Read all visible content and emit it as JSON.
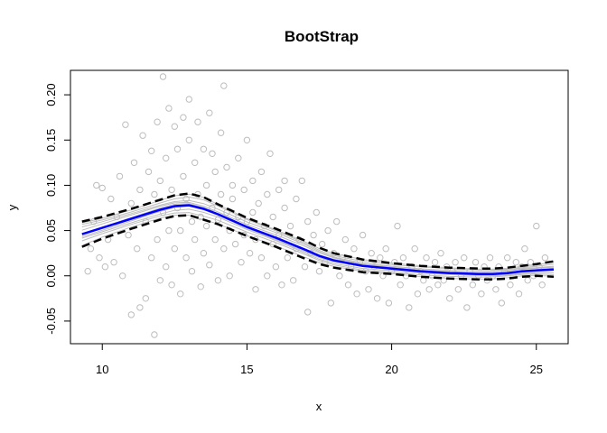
{
  "chart_data": {
    "type": "scatter",
    "title": "BootStrap",
    "xlabel": "x",
    "ylabel": "y",
    "xlim": [
      8.9,
      26.1
    ],
    "ylim": [
      -0.075,
      0.227
    ],
    "xticks": [
      10,
      15,
      20,
      25
    ],
    "xtick_labels": [
      "10",
      "15",
      "20",
      "25"
    ],
    "yticks": [
      -0.05,
      0.0,
      0.05,
      0.1,
      0.15,
      0.2
    ],
    "ytick_labels": [
      "-0.05",
      "0.00",
      "0.05",
      "0.10",
      "0.15",
      "0.20"
    ],
    "grid": false,
    "colors": {
      "points": "#bdbdbd",
      "bootstrap_curves": "#bdbdbd",
      "fit": "#0000ff",
      "band": "#000000"
    },
    "scatter_points": [
      [
        9.5,
        0.005
      ],
      [
        9.6,
        0.03
      ],
      [
        9.7,
        0.06
      ],
      [
        9.8,
        0.1
      ],
      [
        9.9,
        0.02
      ],
      [
        10.0,
        0.097
      ],
      [
        10.1,
        0.01
      ],
      [
        10.2,
        0.04
      ],
      [
        10.3,
        0.085
      ],
      [
        10.4,
        0.015
      ],
      [
        10.5,
        0.065
      ],
      [
        10.6,
        0.11
      ],
      [
        10.7,
        0.0
      ],
      [
        10.8,
        0.167
      ],
      [
        10.9,
        0.045
      ],
      [
        11.0,
        -0.043
      ],
      [
        11.0,
        0.08
      ],
      [
        11.1,
        0.125
      ],
      [
        11.2,
        0.03
      ],
      [
        11.3,
        -0.035
      ],
      [
        11.3,
        0.095
      ],
      [
        11.4,
        0.155
      ],
      [
        11.5,
        -0.025
      ],
      [
        11.5,
        0.06
      ],
      [
        11.6,
        0.115
      ],
      [
        11.7,
        0.02
      ],
      [
        11.7,
        0.138
      ],
      [
        11.8,
        -0.065
      ],
      [
        11.8,
        0.09
      ],
      [
        11.9,
        0.04
      ],
      [
        11.9,
        0.17
      ],
      [
        12.0,
        0.105
      ],
      [
        12.0,
        -0.005
      ],
      [
        12.1,
        0.22
      ],
      [
        12.1,
        0.07
      ],
      [
        12.2,
        0.01
      ],
      [
        12.2,
        0.13
      ],
      [
        12.3,
        0.185
      ],
      [
        12.3,
        0.05
      ],
      [
        12.4,
        -0.01
      ],
      [
        12.4,
        0.095
      ],
      [
        12.5,
        0.165
      ],
      [
        12.5,
        0.03
      ],
      [
        12.6,
        0.075
      ],
      [
        12.6,
        0.14
      ],
      [
        12.7,
        -0.02
      ],
      [
        12.7,
        0.05
      ],
      [
        12.8,
        0.175
      ],
      [
        12.8,
        0.11
      ],
      [
        12.9,
        0.02
      ],
      [
        12.9,
        0.085
      ],
      [
        13.0,
        0.15
      ],
      [
        13.0,
        0.195
      ],
      [
        13.1,
        0.06
      ],
      [
        13.1,
        0.005
      ],
      [
        13.2,
        0.125
      ],
      [
        13.2,
        0.04
      ],
      [
        13.3,
        0.17
      ],
      [
        13.3,
        0.09
      ],
      [
        13.4,
        -0.012
      ],
      [
        13.4,
        0.065
      ],
      [
        13.5,
        0.14
      ],
      [
        13.5,
        0.025
      ],
      [
        13.6,
        0.1
      ],
      [
        13.6,
        0.055
      ],
      [
        13.7,
        0.18
      ],
      [
        13.7,
        0.012
      ],
      [
        13.8,
        0.075
      ],
      [
        13.8,
        0.135
      ],
      [
        13.9,
        0.04
      ],
      [
        13.9,
        0.115
      ],
      [
        14.0,
        -0.005
      ],
      [
        14.0,
        0.062
      ],
      [
        14.1,
        0.158
      ],
      [
        14.1,
        0.09
      ],
      [
        14.2,
        0.03
      ],
      [
        14.2,
        0.21
      ],
      [
        14.3,
        0.07
      ],
      [
        14.3,
        0.12
      ],
      [
        14.4,
        0.0
      ],
      [
        14.4,
        0.05
      ],
      [
        14.5,
        0.1
      ],
      [
        14.5,
        0.085
      ],
      [
        14.6,
        0.035
      ],
      [
        14.7,
        0.065
      ],
      [
        14.7,
        0.13
      ],
      [
        14.8,
        0.015
      ],
      [
        14.9,
        0.045
      ],
      [
        14.9,
        0.095
      ],
      [
        15.0,
        0.15
      ],
      [
        15.0,
        0.06
      ],
      [
        15.1,
        0.025
      ],
      [
        15.2,
        0.105
      ],
      [
        15.2,
        0.07
      ],
      [
        15.3,
        -0.015
      ],
      [
        15.3,
        0.04
      ],
      [
        15.4,
        0.08
      ],
      [
        15.5,
        0.115
      ],
      [
        15.5,
        0.02
      ],
      [
        15.6,
        0.055
      ],
      [
        15.7,
        0.09
      ],
      [
        15.7,
        0.0
      ],
      [
        15.8,
        0.135
      ],
      [
        15.9,
        0.035
      ],
      [
        15.9,
        0.065
      ],
      [
        16.0,
        0.01
      ],
      [
        16.1,
        0.095
      ],
      [
        16.1,
        0.045
      ],
      [
        16.2,
        -0.01
      ],
      [
        16.3,
        0.075
      ],
      [
        16.3,
        0.105
      ],
      [
        16.4,
        0.02
      ],
      [
        16.5,
        0.055
      ],
      [
        16.6,
        -0.005
      ],
      [
        16.7,
        0.03
      ],
      [
        16.7,
        0.085
      ],
      [
        16.8,
        0.04
      ],
      [
        16.9,
        0.105
      ],
      [
        17.0,
        0.01
      ],
      [
        17.1,
        0.06
      ],
      [
        17.1,
        -0.04
      ],
      [
        17.2,
        0.025
      ],
      [
        17.3,
        0.045
      ],
      [
        17.4,
        0.07
      ],
      [
        17.5,
        0.005
      ],
      [
        17.6,
        0.035
      ],
      [
        17.7,
        0.015
      ],
      [
        17.8,
        0.05
      ],
      [
        17.9,
        -0.03
      ],
      [
        18.0,
        0.025
      ],
      [
        18.1,
        0.06
      ],
      [
        18.2,
        0.0
      ],
      [
        18.3,
        0.02
      ],
      [
        18.4,
        0.04
      ],
      [
        18.5,
        -0.01
      ],
      [
        18.6,
        0.01
      ],
      [
        18.7,
        0.03
      ],
      [
        18.8,
        -0.02
      ],
      [
        18.9,
        0.015
      ],
      [
        19.0,
        0.045
      ],
      [
        19.1,
        0.005
      ],
      [
        19.2,
        -0.015
      ],
      [
        19.3,
        0.025
      ],
      [
        19.4,
        0.01
      ],
      [
        19.5,
        -0.025
      ],
      [
        19.6,
        0.02
      ],
      [
        19.7,
        0.0
      ],
      [
        19.8,
        0.03
      ],
      [
        19.9,
        -0.03
      ],
      [
        20.0,
        0.005
      ],
      [
        20.1,
        0.015
      ],
      [
        20.2,
        0.055
      ],
      [
        20.3,
        -0.01
      ],
      [
        20.4,
        0.02
      ],
      [
        20.5,
        0.0
      ],
      [
        20.6,
        -0.035
      ],
      [
        20.7,
        0.01
      ],
      [
        20.8,
        0.03
      ],
      [
        20.9,
        -0.02
      ],
      [
        21.0,
        0.005
      ],
      [
        21.1,
        -0.005
      ],
      [
        21.2,
        0.02
      ],
      [
        21.3,
        -0.015
      ],
      [
        21.4,
        0.0
      ],
      [
        21.5,
        0.015
      ],
      [
        21.6,
        -0.01
      ],
      [
        21.7,
        0.025
      ],
      [
        21.8,
        -0.005
      ],
      [
        21.9,
        0.01
      ],
      [
        22.0,
        -0.025
      ],
      [
        22.1,
        0.005
      ],
      [
        22.2,
        0.015
      ],
      [
        22.3,
        -0.015
      ],
      [
        22.4,
        0.0
      ],
      [
        22.5,
        0.02
      ],
      [
        22.6,
        -0.035
      ],
      [
        22.7,
        0.005
      ],
      [
        22.8,
        -0.01
      ],
      [
        22.9,
        0.015
      ],
      [
        23.0,
        0.0
      ],
      [
        23.1,
        -0.02
      ],
      [
        23.2,
        0.01
      ],
      [
        23.3,
        -0.005
      ],
      [
        23.4,
        0.02
      ],
      [
        23.5,
        0.0
      ],
      [
        23.6,
        -0.015
      ],
      [
        23.7,
        0.01
      ],
      [
        23.8,
        -0.03
      ],
      [
        23.9,
        0.005
      ],
      [
        24.0,
        0.02
      ],
      [
        24.1,
        -0.01
      ],
      [
        24.2,
        0.0
      ],
      [
        24.3,
        0.015
      ],
      [
        24.4,
        -0.02
      ],
      [
        24.5,
        0.01
      ],
      [
        24.6,
        0.03
      ],
      [
        24.7,
        -0.005
      ],
      [
        24.8,
        0.015
      ],
      [
        24.9,
        0.0
      ],
      [
        25.0,
        0.055
      ],
      [
        25.1,
        0.01
      ],
      [
        25.2,
        -0.01
      ],
      [
        25.3,
        0.02
      ]
    ],
    "fit_curve": [
      [
        9.3,
        0.046
      ],
      [
        10.0,
        0.053
      ],
      [
        11.0,
        0.063
      ],
      [
        12.0,
        0.073
      ],
      [
        12.5,
        0.077
      ],
      [
        13.0,
        0.078
      ],
      [
        13.5,
        0.074
      ],
      [
        14.0,
        0.068
      ],
      [
        15.0,
        0.054
      ],
      [
        16.0,
        0.042
      ],
      [
        17.0,
        0.029
      ],
      [
        17.5,
        0.022
      ],
      [
        18.0,
        0.017
      ],
      [
        19.0,
        0.011
      ],
      [
        20.0,
        0.008
      ],
      [
        21.0,
        0.005
      ],
      [
        22.0,
        0.003
      ],
      [
        23.0,
        0.002
      ],
      [
        23.5,
        0.002
      ],
      [
        24.0,
        0.003
      ],
      [
        24.5,
        0.005
      ],
      [
        25.0,
        0.006
      ],
      [
        25.6,
        0.007
      ]
    ],
    "upper_band": [
      [
        9.3,
        0.06
      ],
      [
        10.0,
        0.065
      ],
      [
        11.0,
        0.074
      ],
      [
        12.0,
        0.084
      ],
      [
        12.5,
        0.089
      ],
      [
        13.0,
        0.091
      ],
      [
        13.5,
        0.087
      ],
      [
        14.0,
        0.079
      ],
      [
        15.0,
        0.064
      ],
      [
        16.0,
        0.052
      ],
      [
        17.0,
        0.039
      ],
      [
        17.5,
        0.031
      ],
      [
        18.0,
        0.025
      ],
      [
        19.0,
        0.018
      ],
      [
        20.0,
        0.014
      ],
      [
        21.0,
        0.011
      ],
      [
        22.0,
        0.009
      ],
      [
        23.0,
        0.008
      ],
      [
        23.5,
        0.008
      ],
      [
        24.0,
        0.009
      ],
      [
        24.5,
        0.011
      ],
      [
        25.0,
        0.013
      ],
      [
        25.6,
        0.016
      ]
    ],
    "lower_band": [
      [
        9.3,
        0.032
      ],
      [
        10.0,
        0.041
      ],
      [
        11.0,
        0.052
      ],
      [
        12.0,
        0.062
      ],
      [
        12.5,
        0.066
      ],
      [
        13.0,
        0.067
      ],
      [
        13.5,
        0.062
      ],
      [
        14.0,
        0.057
      ],
      [
        15.0,
        0.044
      ],
      [
        16.0,
        0.032
      ],
      [
        17.0,
        0.019
      ],
      [
        17.5,
        0.013
      ],
      [
        18.0,
        0.009
      ],
      [
        19.0,
        0.004
      ],
      [
        20.0,
        0.002
      ],
      [
        21.0,
        -0.001
      ],
      [
        22.0,
        -0.003
      ],
      [
        23.0,
        -0.004
      ],
      [
        23.5,
        -0.004
      ],
      [
        24.0,
        -0.003
      ],
      [
        24.5,
        -0.001
      ],
      [
        25.0,
        0.0
      ],
      [
        25.6,
        -0.001
      ]
    ]
  }
}
